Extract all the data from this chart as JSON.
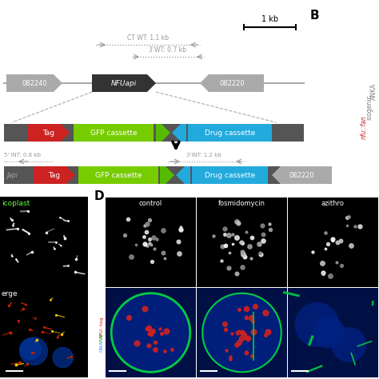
{
  "bg_color": "#ffffff",
  "colors": {
    "gray_dark": "#555555",
    "gray_mid": "#808080",
    "gray_light": "#aaaaaa",
    "red": "#cc2222",
    "green": "#77cc00",
    "blue_cyan": "#22aadd",
    "black": "#000000",
    "white": "#ffffff",
    "text_gray": "#999999",
    "nfu_dark": "#333333"
  },
  "scalebar_label": "1 kb",
  "ct_wt_label": "CT WT: 1.1 kb",
  "wt3_label": "3'WT: 0.7 kb",
  "int5_label": "5' INT: 0.8 kb",
  "int3_label": "3'INT: 1.2 kb",
  "gene_082240": "082240",
  "gene_NFU": "NFUapi",
  "gene_082220": "082220",
  "tag_label": "Tag",
  "gfp_label": "GFP cassette",
  "drug_label": "Drug cassette",
  "japi_label": "Japi",
  "col_labels": [
    "control",
    "fosmidomycin",
    "azithro"
  ],
  "row1_label": "NFU::tag",
  "row2_labels": [
    "NFU::tag",
    "PVM",
    "DNA"
  ],
  "left_top_label": "icoplast",
  "left_bot_label": "erge",
  "D_label": "D",
  "B_label": "B",
  "ANKA_label": "ANKA",
  "isogenic_label": "isogenic",
  "nfu_fan_label": "nfu::fan"
}
